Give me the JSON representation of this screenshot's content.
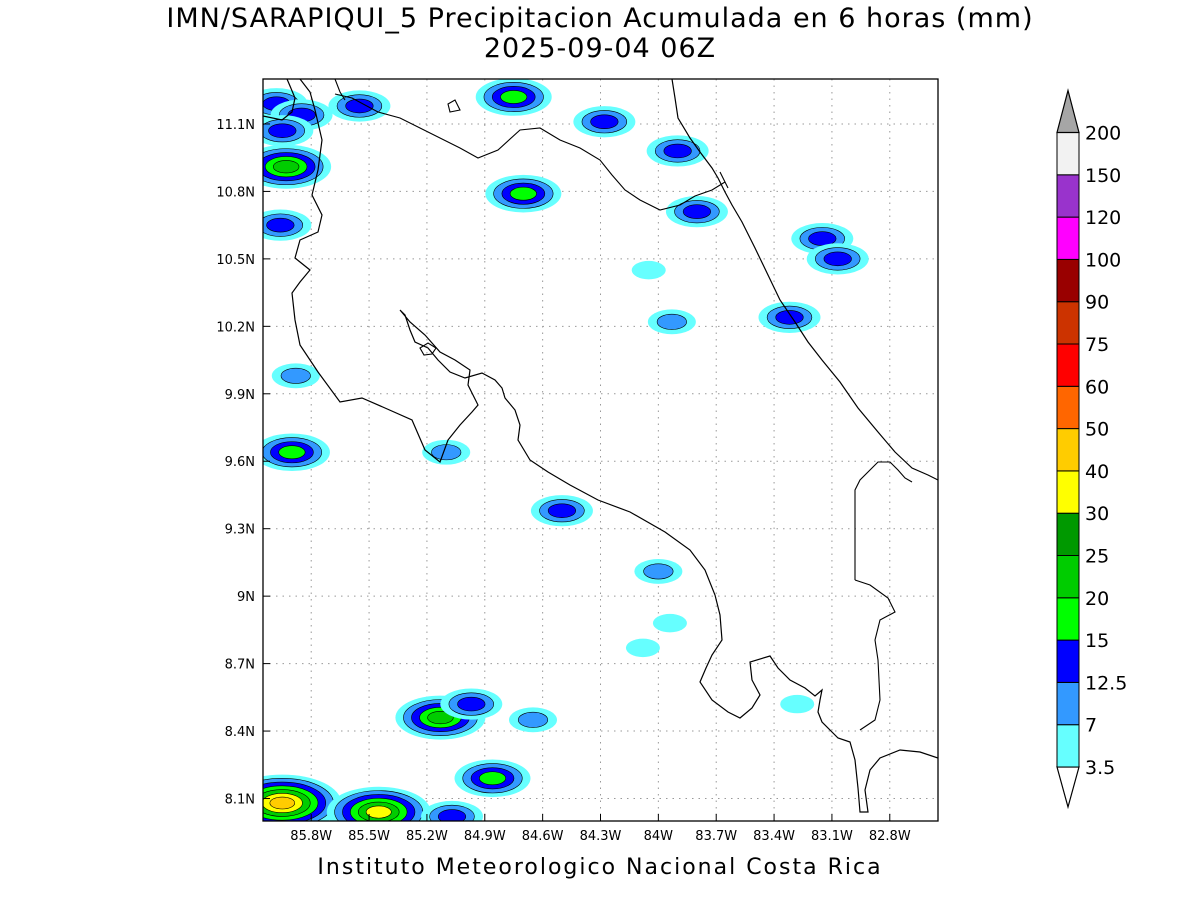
{
  "header": {
    "title": "IMN/SARAPIQUI_5 Precipitacion Acumulada en 6 horas (mm)",
    "datetime": "2025-09-04 06Z"
  },
  "footer": {
    "credit": "Instituto Meteorologico Nacional Costa Rica"
  },
  "map": {
    "lon_range": [
      -86.05,
      -82.55
    ],
    "lat_range": [
      8.0,
      11.3
    ],
    "x_ticks": [
      {
        "lon": -85.8,
        "label": "85.8W"
      },
      {
        "lon": -85.5,
        "label": "85.5W"
      },
      {
        "lon": -85.2,
        "label": "85.2W"
      },
      {
        "lon": -84.9,
        "label": "84.9W"
      },
      {
        "lon": -84.6,
        "label": "84.6W"
      },
      {
        "lon": -84.3,
        "label": "84.3W"
      },
      {
        "lon": -84.0,
        "label": "84W"
      },
      {
        "lon": -83.7,
        "label": "83.7W"
      },
      {
        "lon": -83.4,
        "label": "83.4W"
      },
      {
        "lon": -83.1,
        "label": "83.1W"
      },
      {
        "lon": -82.8,
        "label": "82.8W"
      }
    ],
    "y_ticks": [
      {
        "lat": 11.1,
        "label": "11.1N"
      },
      {
        "lat": 10.8,
        "label": "10.8N"
      },
      {
        "lat": 10.5,
        "label": "10.5N"
      },
      {
        "lat": 10.2,
        "label": "10.2N"
      },
      {
        "lat": 9.9,
        "label": "9.9N"
      },
      {
        "lat": 9.6,
        "label": "9.6N"
      },
      {
        "lat": 9.3,
        "label": "9.3N"
      },
      {
        "lat": 9.0,
        "label": "9N"
      },
      {
        "lat": 8.7,
        "label": "8.7N"
      },
      {
        "lat": 8.4,
        "label": "8.4N"
      },
      {
        "lat": 8.1,
        "label": "8.1N"
      }
    ],
    "grid": true
  },
  "colorbar": {
    "unit": "mm",
    "bins": [
      {
        "color": "#66ffff",
        "label": "3.5"
      },
      {
        "color": "#3399ff",
        "label": "7"
      },
      {
        "color": "#0000ff",
        "label": "12.5"
      },
      {
        "color": "#00ff00",
        "label": "15"
      },
      {
        "color": "#00cc00",
        "label": "20"
      },
      {
        "color": "#009900",
        "label": "25"
      },
      {
        "color": "#ffff00",
        "label": "30"
      },
      {
        "color": "#ffcc00",
        "label": "40"
      },
      {
        "color": "#ff6600",
        "label": "50"
      },
      {
        "color": "#ff0000",
        "label": "60"
      },
      {
        "color": "#cc3300",
        "label": "75"
      },
      {
        "color": "#990000",
        "label": "90"
      },
      {
        "color": "#ff00ff",
        "label": "100"
      },
      {
        "color": "#9933cc",
        "label": "120"
      },
      {
        "color": "#f2f2f2",
        "label": "150"
      }
    ],
    "top_label": "200",
    "under_color": "#ffffff",
    "over_color": "#a6a6a6"
  },
  "precip_cells": [
    {
      "lon": -85.98,
      "lat": 11.19,
      "levels": [
        3.5,
        7,
        12.5
      ]
    },
    {
      "lon": -85.85,
      "lat": 11.14,
      "levels": [
        3.5,
        7,
        12.5
      ]
    },
    {
      "lon": -85.55,
      "lat": 11.18,
      "levels": [
        3.5,
        7,
        12.5
      ]
    },
    {
      "lon": -84.75,
      "lat": 11.22,
      "levels": [
        3.5,
        7,
        12.5,
        15
      ]
    },
    {
      "lon": -84.28,
      "lat": 11.11,
      "levels": [
        3.5,
        7,
        12.5
      ]
    },
    {
      "lon": -85.95,
      "lat": 11.07,
      "levels": [
        3.5,
        7,
        12.5
      ]
    },
    {
      "lon": -85.93,
      "lat": 10.91,
      "levels": [
        3.5,
        7,
        12.5,
        15,
        20
      ]
    },
    {
      "lon": -85.96,
      "lat": 10.65,
      "levels": [
        3.5,
        7,
        12.5
      ]
    },
    {
      "lon": -84.7,
      "lat": 10.79,
      "levels": [
        3.5,
        7,
        12.5,
        15
      ]
    },
    {
      "lon": -83.9,
      "lat": 10.98,
      "levels": [
        3.5,
        7,
        12.5
      ]
    },
    {
      "lon": -83.8,
      "lat": 10.71,
      "levels": [
        3.5,
        7,
        12.5
      ]
    },
    {
      "lon": -83.15,
      "lat": 10.59,
      "levels": [
        3.5,
        7,
        12.5
      ]
    },
    {
      "lon": -83.07,
      "lat": 10.5,
      "levels": [
        3.5,
        7,
        12.5
      ]
    },
    {
      "lon": -83.32,
      "lat": 10.24,
      "levels": [
        3.5,
        7,
        12.5
      ]
    },
    {
      "lon": -83.93,
      "lat": 10.22,
      "levels": [
        3.5,
        7
      ]
    },
    {
      "lon": -84.05,
      "lat": 10.45,
      "levels": [
        3.5
      ]
    },
    {
      "lon": -85.9,
      "lat": 9.64,
      "levels": [
        3.5,
        7,
        12.5,
        15
      ]
    },
    {
      "lon": -85.88,
      "lat": 9.98,
      "levels": [
        3.5,
        7
      ]
    },
    {
      "lon": -84.5,
      "lat": 9.38,
      "levels": [
        3.5,
        7,
        12.5
      ]
    },
    {
      "lon": -85.1,
      "lat": 9.64,
      "levels": [
        3.5,
        7
      ]
    },
    {
      "lon": -84.0,
      "lat": 9.11,
      "levels": [
        3.5,
        7
      ]
    },
    {
      "lon": -85.13,
      "lat": 8.46,
      "levels": [
        3.5,
        7,
        12.5,
        15,
        20
      ]
    },
    {
      "lon": -84.97,
      "lat": 8.52,
      "levels": [
        3.5,
        7,
        12.5
      ]
    },
    {
      "lon": -84.65,
      "lat": 8.45,
      "levels": [
        3.5,
        7
      ]
    },
    {
      "lon": -84.86,
      "lat": 8.19,
      "levels": [
        3.5,
        7,
        12.5,
        15
      ]
    },
    {
      "lon": -85.95,
      "lat": 8.08,
      "levels": [
        3.5,
        7,
        12.5,
        15,
        20,
        30,
        40
      ]
    },
    {
      "lon": -85.45,
      "lat": 8.04,
      "levels": [
        3.5,
        7,
        12.5,
        15,
        20,
        30
      ]
    },
    {
      "lon": -85.07,
      "lat": 8.02,
      "levels": [
        3.5,
        7,
        12.5
      ]
    },
    {
      "lon": -83.94,
      "lat": 8.88,
      "levels": [
        3.5
      ]
    },
    {
      "lon": -84.08,
      "lat": 8.77,
      "levels": [
        3.5
      ]
    },
    {
      "lon": -83.28,
      "lat": 8.52,
      "levels": [
        3.5
      ]
    }
  ]
}
